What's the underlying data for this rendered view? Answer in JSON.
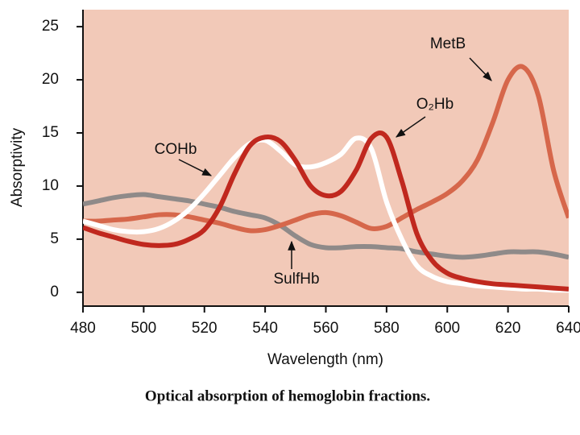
{
  "chart_data": {
    "type": "line",
    "x_label": "Wavelength (nm)",
    "y_label": "Absorptivity",
    "caption": "Optical absorption of hemoglobin fractions.",
    "background": "#f2c9b8",
    "x": [
      480,
      485,
      490,
      495,
      500,
      505,
      510,
      515,
      520,
      525,
      530,
      535,
      540,
      545,
      550,
      555,
      560,
      565,
      570,
      575,
      580,
      585,
      590,
      595,
      600,
      605,
      610,
      615,
      620,
      625,
      630,
      635,
      640
    ],
    "series": [
      {
        "name": "SulfHb",
        "color": "#8f8a89",
        "values": [
          8.3,
          8.6,
          8.9,
          9.1,
          9.2,
          9.0,
          8.8,
          8.6,
          8.3,
          8.0,
          7.6,
          7.3,
          7.0,
          6.3,
          5.3,
          4.5,
          4.2,
          4.2,
          4.3,
          4.3,
          4.2,
          4.1,
          3.8,
          3.6,
          3.4,
          3.3,
          3.4,
          3.6,
          3.8,
          3.8,
          3.8,
          3.6,
          3.3
        ]
      },
      {
        "name": "MetB",
        "color": "#d6674b",
        "values": [
          6.7,
          6.7,
          6.8,
          6.9,
          7.1,
          7.3,
          7.3,
          7.1,
          6.8,
          6.5,
          6.1,
          5.8,
          5.9,
          6.3,
          6.8,
          7.3,
          7.5,
          7.2,
          6.6,
          6.0,
          6.2,
          7.0,
          7.8,
          8.5,
          9.3,
          10.5,
          12.5,
          16.0,
          20.0,
          21.2,
          18.5,
          11.5,
          7.0
        ]
      },
      {
        "name": "COHb",
        "color": "#ffffff",
        "values": [
          6.7,
          6.3,
          5.9,
          5.7,
          5.7,
          6.0,
          6.7,
          7.8,
          9.3,
          11.0,
          12.7,
          14.0,
          14.3,
          13.3,
          12.0,
          11.8,
          12.2,
          13.0,
          14.5,
          13.5,
          8.5,
          5.0,
          2.5,
          1.5,
          1.0,
          0.8,
          0.6,
          0.5,
          0.4,
          0.3,
          0.3,
          0.2,
          0.2
        ]
      },
      {
        "name": "O₂Hb",
        "color": "#c0281e",
        "values": [
          6.1,
          5.6,
          5.2,
          4.8,
          4.5,
          4.4,
          4.5,
          5.0,
          5.9,
          8.0,
          11.2,
          13.8,
          14.6,
          14.2,
          12.4,
          10.0,
          9.1,
          9.5,
          11.5,
          14.5,
          14.6,
          10.5,
          5.5,
          3.0,
          1.8,
          1.3,
          1.0,
          0.8,
          0.7,
          0.6,
          0.5,
          0.4,
          0.3
        ]
      }
    ],
    "xlim": [
      480,
      640
    ],
    "ylim": [
      -1.3,
      26.6
    ],
    "xticks": [
      480,
      500,
      520,
      540,
      560,
      580,
      600,
      620,
      640
    ],
    "yticks": [
      0,
      5,
      10,
      15,
      20,
      25
    ]
  }
}
